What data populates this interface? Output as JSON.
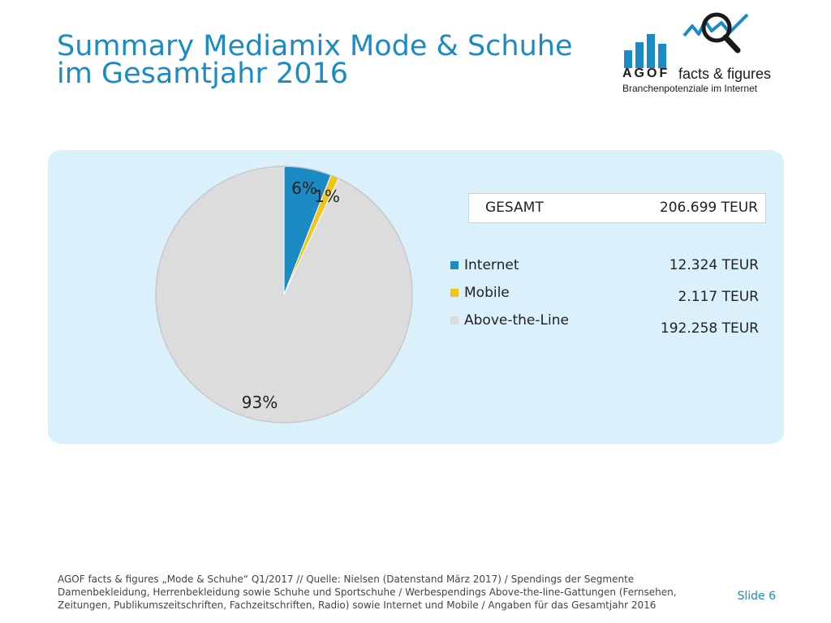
{
  "slide": {
    "title_line1": "Summary Mediamix Mode & Schuhe",
    "title_line2": "im Gesamtjahr 2016",
    "number": "Slide 6"
  },
  "logo": {
    "brand": "AGOF",
    "product": "facts & figures",
    "tagline": "Branchenpotenziale im Internet",
    "icon": "magnifier-chart-icon"
  },
  "summary": {
    "total_label": "GESAMT",
    "total_value": "206.699 TEUR",
    "items": [
      {
        "label": "Internet",
        "value": "12.324 TEUR"
      },
      {
        "label": "Mobile",
        "value": "2.117 TEUR"
      },
      {
        "label": "Above-the-Line",
        "value": "192.258 TEUR"
      }
    ]
  },
  "footer": {
    "source": "AGOF facts & figures „Mode & Schuhe“ Q1/2017 // Quelle: Nielsen (Datenstand März 2017) / Spendings der Segmente Damenbekleidung, Herrenbekleidung sowie Schuhe und Sportschuhe / Werbespendings Above-the-line-Gattungen (Fernsehen, Zeitungen, Publikumszeitschriften, Fachzeitschriften, Radio) sowie Internet und Mobile / Angaben für das Gesamtjahr 2016"
  },
  "colors": {
    "accent": "#1a8bc5",
    "internet": "#1a8bc5",
    "mobile": "#f2c41a",
    "above_the_line": "#dcdcdc",
    "panel": "#daf0fa"
  },
  "chart_data": {
    "type": "pie",
    "title": "",
    "categories": [
      "Internet",
      "Mobile",
      "Above-the-Line"
    ],
    "values": [
      12324,
      2117,
      192258
    ],
    "percent_labels": [
      "6%",
      "1%",
      "93%"
    ],
    "unit": "TEUR",
    "legend_position": "right"
  }
}
